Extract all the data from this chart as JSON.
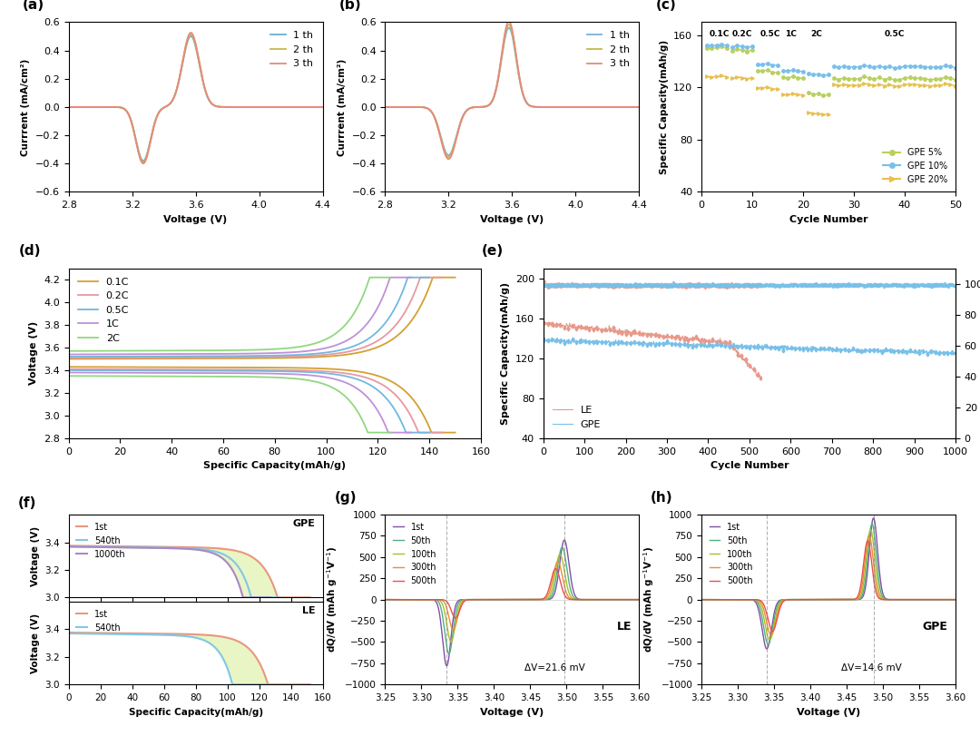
{
  "fig_width": 10.8,
  "fig_height": 8.11,
  "cv_legend": [
    "1 th",
    "2 th",
    "3 th"
  ],
  "cv_colors_a": [
    "#6ab0d4",
    "#c8b84a",
    "#e8897a"
  ],
  "cv_colors_b": [
    "#7ab0d8",
    "#c8b84a",
    "#e8897a"
  ],
  "rate_colors": [
    "#b8d060",
    "#78c0e8",
    "#e8c050"
  ],
  "rate_legend": [
    "GPE 5%",
    "GPE 10%",
    "GPE 20%"
  ],
  "charge_colors": [
    "#d4a030",
    "#e898a0",
    "#70b8e0",
    "#c090d8",
    "#90d880"
  ],
  "charge_legend": [
    "0.1C",
    "0.2C",
    "0.5C",
    "1C",
    "2C"
  ],
  "cycle_le_color": "#e8998a",
  "cycle_gpe_color": "#78c0e8",
  "gcd_top_colors": [
    "#e89880",
    "#80c8e8",
    "#a888c8"
  ],
  "gcd_top_legend": [
    "1st",
    "540th",
    "1000th"
  ],
  "gcd_top_fill_color": "#d0e890",
  "gcd_bot_colors": [
    "#e89880",
    "#80c8e8"
  ],
  "gcd_bot_legend": [
    "1st",
    "540th"
  ],
  "gcd_bot_fill_color": "#d0e890",
  "dqdv_colors": [
    "#8050a8",
    "#50b080",
    "#a8c030",
    "#e89030",
    "#e85050"
  ],
  "dqdv_legend": [
    "1st",
    "50th",
    "100th",
    "300th",
    "500th"
  ]
}
